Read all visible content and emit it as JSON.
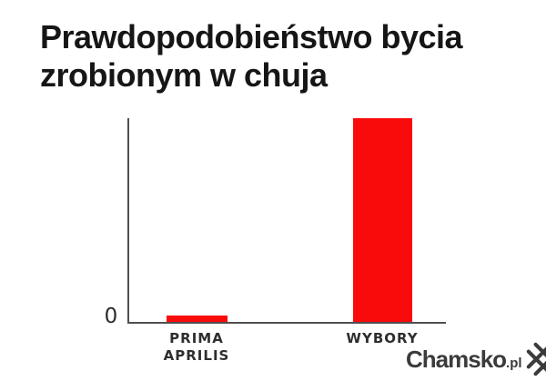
{
  "header": {
    "title": "Prawdopodobieństwo bycia zrobionym w chuja"
  },
  "chart_data": {
    "type": "bar",
    "title": "Prawdopodobieństwo bycia zrobionym w chuja",
    "categories": [
      "PRIMA\nAPRILIS",
      "WYBORY"
    ],
    "values": [
      3,
      100
    ],
    "xlabel": "",
    "ylabel": "",
    "ylim": [
      0,
      100
    ],
    "ytick_labels": [
      "0"
    ],
    "grid": false,
    "legend": "none",
    "bar_color": "#f90b0b",
    "axis_color": "#4f4f4f"
  },
  "axis": {
    "origin_label": "0"
  },
  "watermark": {
    "site_name": "Chamsko",
    "tld": ".pl",
    "logo_icon": "hash-cross-icon"
  },
  "colors": {
    "background": "#ffffff",
    "title_text": "#161616",
    "category_label_text": "#2e2e2e",
    "bar_red": "#f90b0b",
    "axis_gray": "#4f4f4f",
    "watermark_text": "#3b3b3b",
    "watermark_outline": "#ffffff"
  }
}
